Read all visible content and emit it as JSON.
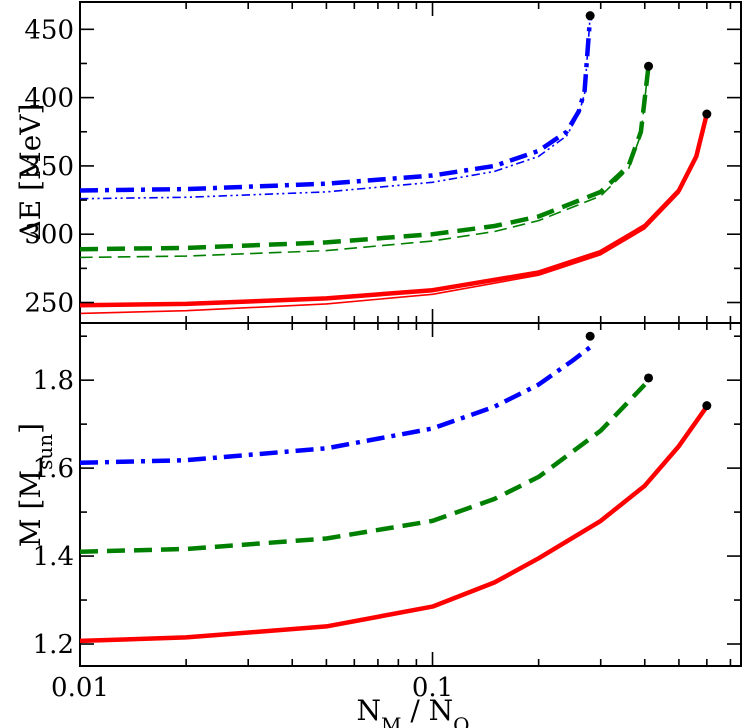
{
  "chart_data": [
    {
      "type": "line",
      "panel": "top",
      "ylabel": "ΔE [MeV]",
      "xlabel": "",
      "xscale": "log",
      "xlim": [
        0.01,
        0.75
      ],
      "ylim": [
        235,
        470
      ],
      "xticks": [
        0.01,
        0.1
      ],
      "xtick_labels": [
        "",
        ""
      ],
      "yticks": [
        250,
        300,
        350,
        400,
        450
      ],
      "ytick_labels": [
        "250",
        "300",
        "350",
        "400",
        "450"
      ],
      "grid": false,
      "series": [
        {
          "color": "#0000ff",
          "style": "dashdot",
          "width": "thick",
          "x": [
            0.01,
            0.02,
            0.05,
            0.1,
            0.15,
            0.2,
            0.24,
            0.26,
            0.27,
            0.28
          ],
          "y": [
            332,
            333,
            337,
            343,
            350,
            361,
            375,
            390,
            405,
            460
          ]
        },
        {
          "color": "#0000ff",
          "style": "dashdotdot",
          "width": "thin",
          "x": [
            0.01,
            0.02,
            0.05,
            0.1,
            0.15,
            0.2,
            0.24,
            0.26,
            0.27,
            0.28
          ],
          "y": [
            326,
            327,
            331,
            338,
            346,
            357,
            372,
            388,
            403,
            460
          ]
        },
        {
          "color": "#008000",
          "style": "dashed",
          "width": "thick",
          "x": [
            0.01,
            0.02,
            0.05,
            0.1,
            0.15,
            0.2,
            0.3,
            0.36,
            0.39,
            0.41
          ],
          "y": [
            289,
            290,
            294,
            300,
            306,
            313,
            331,
            350,
            375,
            423
          ]
        },
        {
          "color": "#008000",
          "style": "dashed",
          "width": "thin",
          "x": [
            0.01,
            0.02,
            0.05,
            0.1,
            0.15,
            0.2,
            0.3,
            0.36,
            0.39,
            0.41
          ],
          "y": [
            283,
            284,
            288,
            295,
            302,
            310,
            328,
            348,
            373,
            423
          ]
        },
        {
          "color": "#ff0000",
          "style": "solid",
          "width": "thick",
          "x": [
            0.01,
            0.02,
            0.05,
            0.1,
            0.2,
            0.3,
            0.4,
            0.5,
            0.56,
            0.6
          ],
          "y": [
            248,
            249,
            253,
            259,
            272,
            287,
            306,
            332,
            357,
            388
          ]
        },
        {
          "color": "#ff0000",
          "style": "solid",
          "width": "thin",
          "x": [
            0.01,
            0.02,
            0.05,
            0.1,
            0.2,
            0.3,
            0.4,
            0.5,
            0.56,
            0.6
          ],
          "y": [
            242,
            244,
            249,
            256,
            270,
            285,
            304,
            330,
            355,
            388
          ]
        }
      ],
      "endpoints": [
        {
          "x": 0.28,
          "y": 460
        },
        {
          "x": 0.41,
          "y": 423
        },
        {
          "x": 0.6,
          "y": 388
        }
      ]
    },
    {
      "type": "line",
      "panel": "bottom",
      "ylabel": "M [M",
      "ylabel_sub": "sun",
      "ylabel_end": "]",
      "xlabel": "N",
      "xlabel_sub1": "M",
      "xlabel_mid": " / N",
      "xlabel_sub2": "O",
      "xscale": "log",
      "xlim": [
        0.01,
        0.75
      ],
      "ylim": [
        1.15,
        1.93
      ],
      "xticks": [
        0.01,
        0.1
      ],
      "xtick_labels": [
        "0.01",
        "0.1"
      ],
      "yticks": [
        1.2,
        1.4,
        1.6,
        1.8
      ],
      "ytick_labels": [
        "1.2",
        "1.4",
        "1.6",
        "1.8"
      ],
      "grid": false,
      "series": [
        {
          "color": "#0000ff",
          "style": "dashdot",
          "width": "thick",
          "x": [
            0.01,
            0.02,
            0.05,
            0.1,
            0.15,
            0.2,
            0.25,
            0.28
          ],
          "y": [
            1.612,
            1.618,
            1.645,
            1.69,
            1.74,
            1.79,
            1.845,
            1.875
          ]
        },
        {
          "color": "#008000",
          "style": "dashed",
          "width": "thick",
          "x": [
            0.01,
            0.02,
            0.05,
            0.1,
            0.15,
            0.2,
            0.3,
            0.4
          ],
          "y": [
            1.41,
            1.416,
            1.44,
            1.48,
            1.53,
            1.58,
            1.685,
            1.79
          ]
        },
        {
          "color": "#ff0000",
          "style": "solid",
          "width": "thick",
          "x": [
            0.01,
            0.02,
            0.05,
            0.1,
            0.15,
            0.2,
            0.3,
            0.4,
            0.5,
            0.6
          ],
          "y": [
            1.207,
            1.215,
            1.24,
            1.285,
            1.34,
            1.395,
            1.48,
            1.56,
            1.65,
            1.74
          ]
        }
      ],
      "endpoints": [
        {
          "x": 0.28,
          "y": 1.9
        },
        {
          "x": 0.41,
          "y": 1.805
        },
        {
          "x": 0.6,
          "y": 1.742
        }
      ]
    }
  ]
}
